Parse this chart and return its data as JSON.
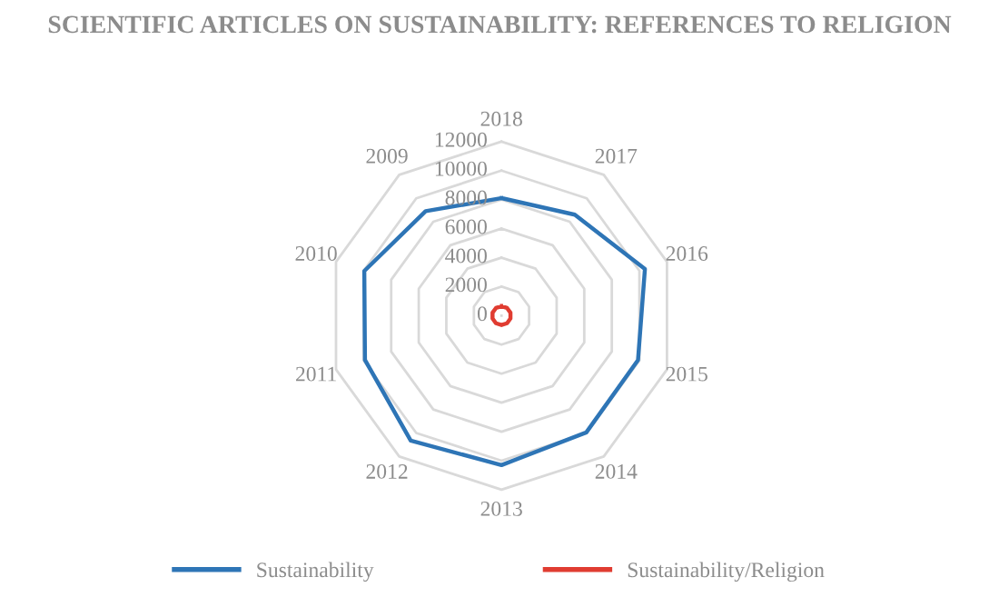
{
  "chart_data": {
    "type": "radar",
    "title": "SCIENTIFIC ARTICLES ON SUSTAINABILITY: REFERENCES TO RELIGION",
    "categories": [
      "2018",
      "2017",
      "2016",
      "2015",
      "2014",
      "2013",
      "2012",
      "2011",
      "2010",
      "2009"
    ],
    "series": [
      {
        "name": "Sustainability",
        "color": "#2e75b6",
        "values": [
          8100,
          8600,
          10400,
          9900,
          9950,
          10300,
          10650,
          9900,
          9950,
          8900
        ]
      },
      {
        "name": "Sustainability/Religion",
        "color": "#e03c31",
        "values": [
          650,
          650,
          650,
          650,
          650,
          650,
          650,
          650,
          650,
          650
        ]
      }
    ],
    "ylim": [
      0,
      12000
    ],
    "yticks": [
      0,
      2000,
      4000,
      6000,
      8000,
      10000,
      12000
    ],
    "grid": true,
    "legend": "bottom",
    "marker": "none"
  }
}
